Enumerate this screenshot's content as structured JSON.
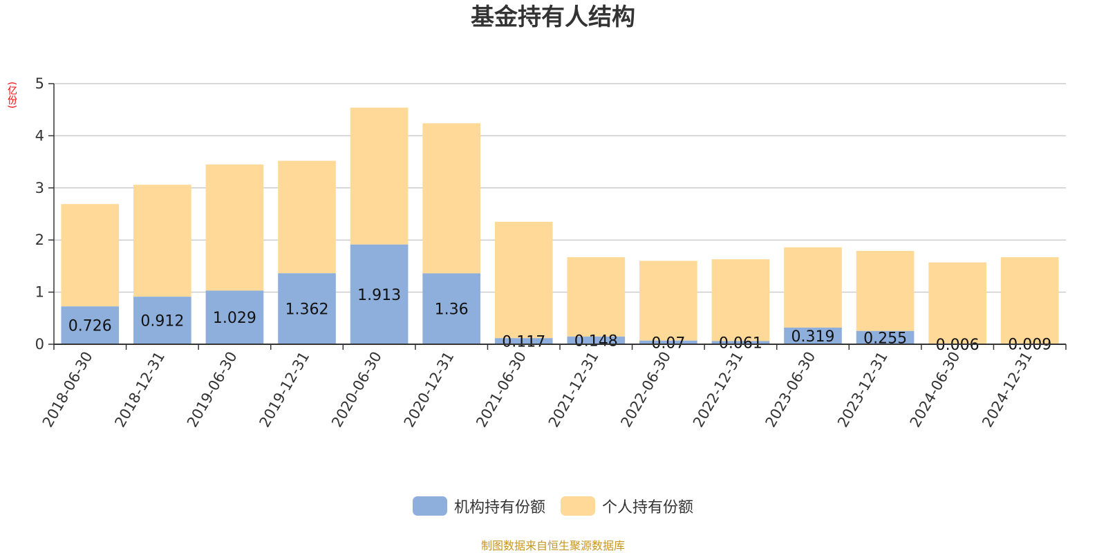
{
  "colors": {
    "institutional": "#8eaedb",
    "individual": "#fed998",
    "grid": "#cccccc",
    "axis": "#333333",
    "unit_label": "#ff0000",
    "source_note": "#c8961e"
  },
  "unit_label": "(亿份)",
  "source_note": "制图数据来自恒生聚源数据库",
  "chart_data": {
    "type": "bar",
    "stacked": true,
    "title": "基金持有人结构",
    "ylabel": "(亿份)",
    "ylim": [
      0,
      5
    ],
    "yticks": [
      0,
      1,
      2,
      3,
      4,
      5
    ],
    "grid": true,
    "legend_position": "bottom",
    "categories": [
      "2018-06-30",
      "2018-12-31",
      "2019-06-30",
      "2019-12-31",
      "2020-06-30",
      "2020-12-31",
      "2021-06-30",
      "2021-12-31",
      "2022-06-30",
      "2022-12-31",
      "2023-06-30",
      "2023-12-31",
      "2024-06-30",
      "2024-12-31"
    ],
    "series": [
      {
        "name": "机构持有份额",
        "values": [
          0.726,
          0.912,
          1.029,
          1.362,
          1.913,
          1.36,
          0.117,
          0.148,
          0.07,
          0.061,
          0.319,
          0.255,
          0.006,
          0.009
        ],
        "labels": [
          "0.726",
          "0.912",
          "1.029",
          "1.362",
          "1.913",
          "1.36",
          "0.117",
          "0.148",
          "0.07",
          "0.061",
          "0.319",
          "0.255",
          "0.006",
          "0.009"
        ]
      },
      {
        "name": "个人持有份额",
        "values": [
          1.964,
          2.148,
          2.421,
          2.158,
          2.627,
          2.88,
          2.233,
          1.522,
          1.53,
          1.569,
          1.541,
          1.535,
          1.564,
          1.661
        ]
      }
    ]
  }
}
